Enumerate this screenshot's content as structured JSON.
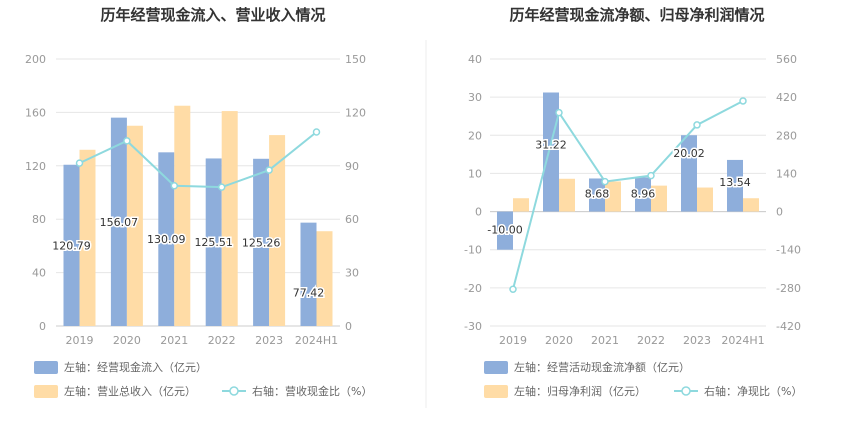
{
  "chart_data": [
    {
      "type": "bar",
      "title": "历年经营现金流入、营业收入情况",
      "categories": [
        "2019",
        "2020",
        "2021",
        "2022",
        "2023",
        "2024H1"
      ],
      "left_axis": {
        "ylim": [
          0,
          200
        ],
        "ticks": [
          "0",
          "40",
          "80",
          "120",
          "160",
          "200"
        ]
      },
      "right_axis": {
        "ylim": [
          0,
          150
        ],
        "ticks": [
          "0",
          "30",
          "60",
          "90",
          "120",
          "150"
        ]
      },
      "series": [
        {
          "name": "左轴：经营现金流入（亿元）",
          "kind": "bar",
          "axis": "left",
          "color": "#8eaedb",
          "values": [
            120.79,
            156.07,
            130.09,
            125.51,
            125.26,
            77.42
          ],
          "labels": [
            "120.79",
            "156.07",
            "130.09",
            "125.51",
            "125.26",
            "77.42"
          ]
        },
        {
          "name": "左轴：营业总收入（亿元）",
          "kind": "bar",
          "axis": "left",
          "color": "#ffdca6",
          "values": [
            132,
            150,
            165,
            161,
            143,
            71
          ]
        },
        {
          "name": "右轴：营收现金比（%）",
          "kind": "line",
          "axis": "right",
          "color": "#8ed9de",
          "values": [
            91.5,
            104.0,
            78.8,
            78.0,
            87.6,
            109.0
          ]
        }
      ],
      "legend_rows": [
        [
          "左轴：经营现金流入（亿元）"
        ],
        [
          "左轴：营业总收入（亿元）",
          "右轴：营收现金比（%）"
        ]
      ]
    },
    {
      "type": "bar",
      "title": "历年经营现金流净额、归母净利润情况",
      "categories": [
        "2019",
        "2020",
        "2021",
        "2022",
        "2023",
        "2024H1"
      ],
      "left_axis": {
        "ylim": [
          -30,
          40
        ],
        "ticks": [
          "-30",
          "-20",
          "-10",
          "0",
          "10",
          "20",
          "30",
          "40"
        ]
      },
      "right_axis": {
        "ylim": [
          -420,
          560
        ],
        "ticks": [
          "-420",
          "-280",
          "-140",
          "0",
          "140",
          "280",
          "420",
          "560"
        ]
      },
      "series": [
        {
          "name": "左轴：经营活动现金流净额（亿元）",
          "kind": "bar",
          "axis": "left",
          "color": "#8eaedb",
          "values": [
            -10.0,
            31.22,
            8.68,
            8.96,
            20.02,
            13.54
          ],
          "labels": [
            "-10.00",
            "31.22",
            "8.68",
            "8.96",
            "20.02",
            "13.54"
          ]
        },
        {
          "name": "左轴：归母净利润（亿元）",
          "kind": "bar",
          "axis": "left",
          "color": "#ffdca6",
          "values": [
            3.5,
            8.6,
            7.9,
            6.8,
            6.3,
            3.5
          ]
        },
        {
          "name": "右轴：净现比（%）",
          "kind": "line",
          "axis": "right",
          "color": "#8ed9de",
          "values": [
            -285,
            363,
            110,
            132,
            318,
            406
          ]
        }
      ],
      "legend_rows": [
        [
          "左轴：经营活动现金流净额（亿元）"
        ],
        [
          "左轴：归母净利润（亿元）",
          "右轴：净现比（%）"
        ]
      ]
    }
  ]
}
